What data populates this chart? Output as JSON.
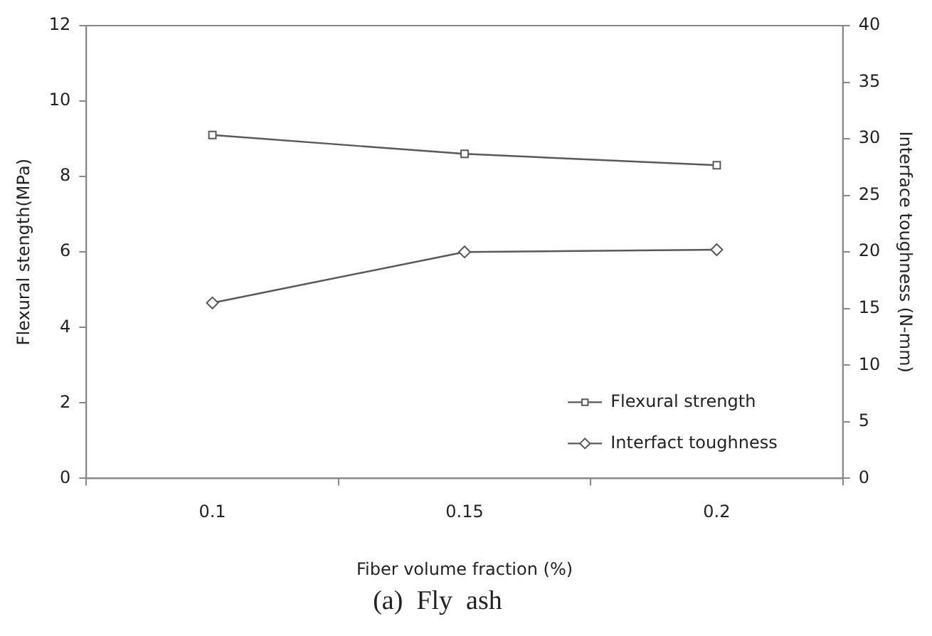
{
  "chart_data": {
    "type": "line",
    "xlabel": "Fiber volume fraction (%)",
    "ylabel": "Flexural stength(MPa)",
    "y2label": "Interface toughness (N-mm)",
    "categories": [
      "0.1",
      "0.15",
      "0.2"
    ],
    "series": [
      {
        "name": "Flexural strength",
        "color": "#595959",
        "values": [
          9.1,
          8.6,
          8.3
        ],
        "marker": "square"
      },
      {
        "name": "Interfact toughness",
        "color": "#595959",
        "values": [
          15.5,
          20,
          20.2
        ],
        "marker": "diamond",
        "axis": "y2"
      }
    ],
    "ylim": [
      0,
      12
    ],
    "yticks": [
      0,
      2,
      4,
      6,
      8,
      10,
      12
    ],
    "y2lim": [
      0,
      40
    ],
    "y2ticks": [
      0,
      5,
      10,
      15,
      20,
      25,
      30,
      35,
      40
    ],
    "grid": false,
    "legend": "bottom right",
    "annotations": [
      "(a)  Fly  ash"
    ]
  }
}
